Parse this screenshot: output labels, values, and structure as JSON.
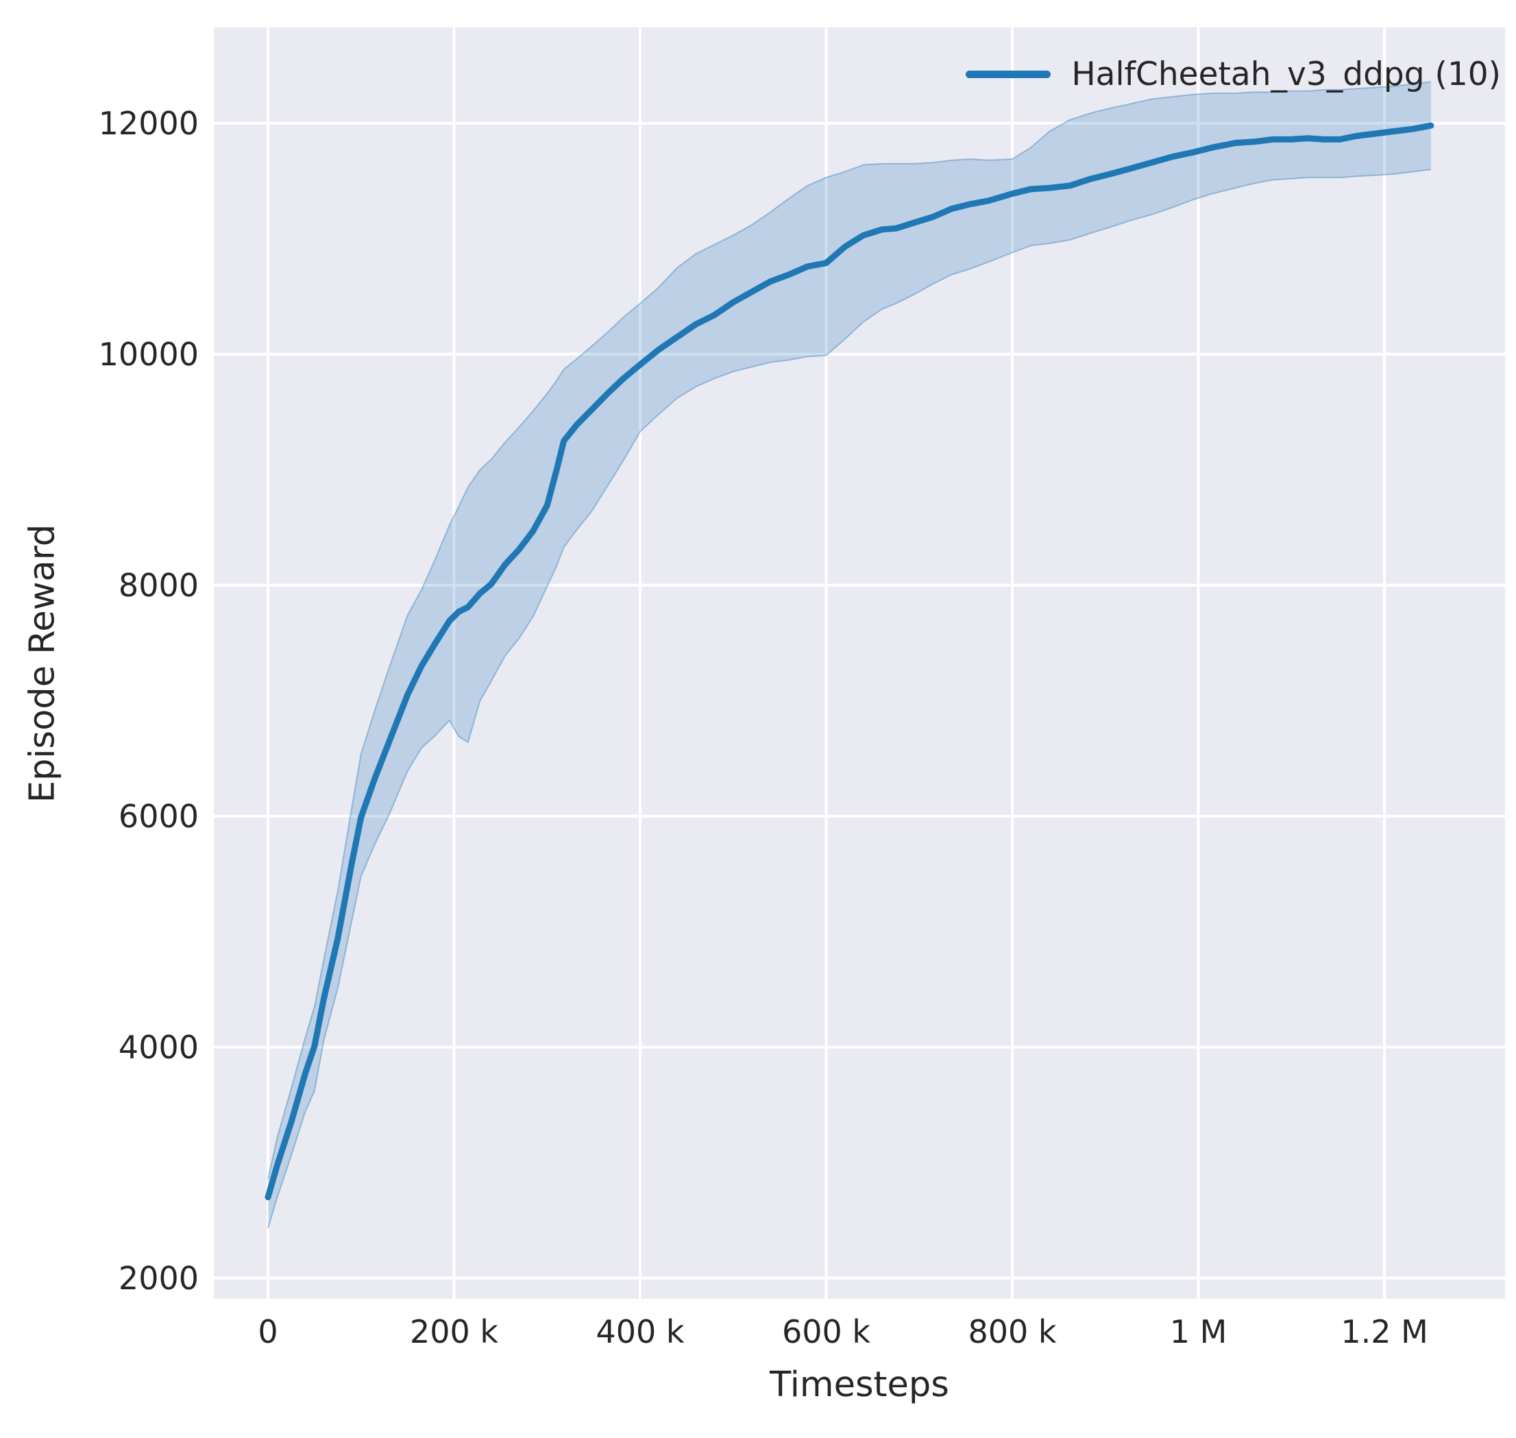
{
  "figure": {
    "background": "#ffffff",
    "axes_background": "#eaeaf2",
    "grid_color": "#ffffff",
    "text_color": "#262626"
  },
  "legend": {
    "label": "HalfCheetah_v3_ddpg (10)",
    "position": "upper right",
    "line_color": "#1f77b4"
  },
  "chart_data": {
    "type": "line",
    "title": "",
    "xlabel": "Timesteps",
    "ylabel": "Episode Reward",
    "grid": true,
    "legend_position": "upper right",
    "xlim": [
      -58200,
      1329600
    ],
    "ylim": [
      1820,
      12830
    ],
    "xticks": {
      "values": [
        0,
        200000,
        400000,
        600000,
        800000,
        1000000,
        1200000
      ],
      "labels": [
        "0",
        "200 k",
        "400 k",
        "600 k",
        "800 k",
        "1 M",
        "1.2 M"
      ]
    },
    "yticks": {
      "values": [
        2000,
        4000,
        6000,
        8000,
        10000,
        12000
      ],
      "labels": [
        "2000",
        "4000",
        "6000",
        "8000",
        "10000",
        "12000"
      ]
    },
    "series": [
      {
        "name": "HalfCheetah_v3_ddpg (10)",
        "color": "#1f77b4",
        "band_fill_alpha": 0.22,
        "band_edge_alpha": 0.38,
        "x": [
          0,
          10000,
          25000,
          40000,
          50000,
          60000,
          75000,
          90000,
          100000,
          115000,
          130000,
          150000,
          165000,
          180000,
          195000,
          205000,
          215000,
          228000,
          240000,
          255000,
          270000,
          285000,
          300000,
          310000,
          318000,
          332000,
          348000,
          365000,
          382000,
          400000,
          420000,
          440000,
          460000,
          480000,
          500000,
          520000,
          540000,
          560000,
          580000,
          600000,
          620000,
          640000,
          660000,
          675000,
          695000,
          715000,
          735000,
          755000,
          775000,
          800000,
          820000,
          840000,
          862000,
          885000,
          905000,
          928000,
          950000,
          972000,
          995000,
          1015000,
          1040000,
          1060000,
          1080000,
          1100000,
          1118000,
          1135000,
          1152000,
          1170000,
          1190000,
          1210000,
          1230000,
          1250000
        ],
        "mean": [
          2700,
          2980,
          3350,
          3770,
          4010,
          4420,
          4940,
          5590,
          5990,
          6330,
          6640,
          7050,
          7300,
          7500,
          7690,
          7770,
          7810,
          7930,
          8010,
          8180,
          8310,
          8470,
          8690,
          8990,
          9250,
          9390,
          9520,
          9660,
          9790,
          9910,
          10040,
          10150,
          10260,
          10340,
          10450,
          10540,
          10630,
          10690,
          10760,
          10790,
          10930,
          11030,
          11080,
          11090,
          11140,
          11190,
          11260,
          11300,
          11330,
          11390,
          11430,
          11440,
          11460,
          11520,
          11560,
          11610,
          11660,
          11710,
          11750,
          11790,
          11830,
          11840,
          11860,
          11860,
          11870,
          11860,
          11860,
          11890,
          11910,
          11930,
          11950,
          11980
        ],
        "lower": [
          2430,
          2700,
          3060,
          3440,
          3620,
          4060,
          4510,
          5090,
          5480,
          5760,
          6010,
          6390,
          6590,
          6700,
          6830,
          6690,
          6640,
          7000,
          7170,
          7390,
          7540,
          7730,
          7990,
          8160,
          8330,
          8480,
          8640,
          8860,
          9080,
          9330,
          9480,
          9620,
          9720,
          9790,
          9850,
          9890,
          9930,
          9950,
          9980,
          9990,
          10130,
          10280,
          10390,
          10440,
          10520,
          10610,
          10690,
          10740,
          10800,
          10880,
          10940,
          10960,
          10990,
          11050,
          11100,
          11160,
          11210,
          11270,
          11340,
          11390,
          11440,
          11480,
          11510,
          11520,
          11530,
          11530,
          11530,
          11540,
          11550,
          11560,
          11580,
          11600
        ],
        "upper": [
          2860,
          3220,
          3640,
          4080,
          4350,
          4760,
          5350,
          6070,
          6540,
          6920,
          7280,
          7740,
          7960,
          8230,
          8520,
          8680,
          8850,
          9000,
          9090,
          9240,
          9370,
          9510,
          9660,
          9770,
          9870,
          9960,
          10070,
          10190,
          10320,
          10440,
          10580,
          10750,
          10870,
          10950,
          11030,
          11120,
          11230,
          11350,
          11460,
          11530,
          11580,
          11640,
          11650,
          11650,
          11650,
          11660,
          11680,
          11690,
          11680,
          11690,
          11790,
          11930,
          12030,
          12090,
          12130,
          12170,
          12210,
          12230,
          12250,
          12260,
          12260,
          12270,
          12270,
          12280,
          12280,
          12290,
          12290,
          12300,
          12310,
          12320,
          12340,
          12360
        ]
      }
    ]
  }
}
